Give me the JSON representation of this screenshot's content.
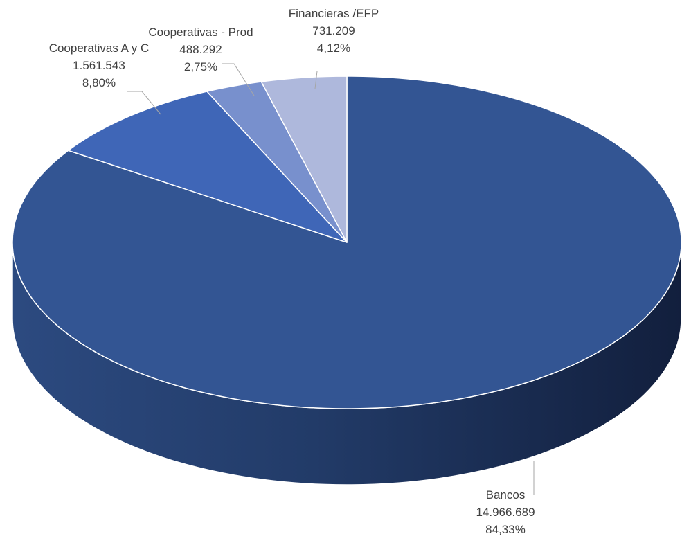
{
  "chart_data": {
    "type": "pie",
    "title": "",
    "slices": [
      {
        "label": "Bancos",
        "value": 14966689,
        "value_label": "14.966.689",
        "percent": 84.33,
        "percent_label": "84,33%",
        "color": "#335593"
      },
      {
        "label": "Cooperativas  A y C",
        "value": 1561543,
        "value_label": "1.561.543",
        "percent": 8.8,
        "percent_label": "8,80%",
        "color": "#3f66b7"
      },
      {
        "label": "Cooperativas - Prod",
        "value": 488292,
        "value_label": "488.292",
        "percent": 2.75,
        "percent_label": "2,75%",
        "color": "#7890cd"
      },
      {
        "label": "Financieras /EFP",
        "value": 731209,
        "value_label": "731.209",
        "percent": 4.12,
        "percent_label": "4,12%",
        "color": "#aeb8dc"
      }
    ],
    "style": "3d-tilted",
    "legend": "none"
  }
}
